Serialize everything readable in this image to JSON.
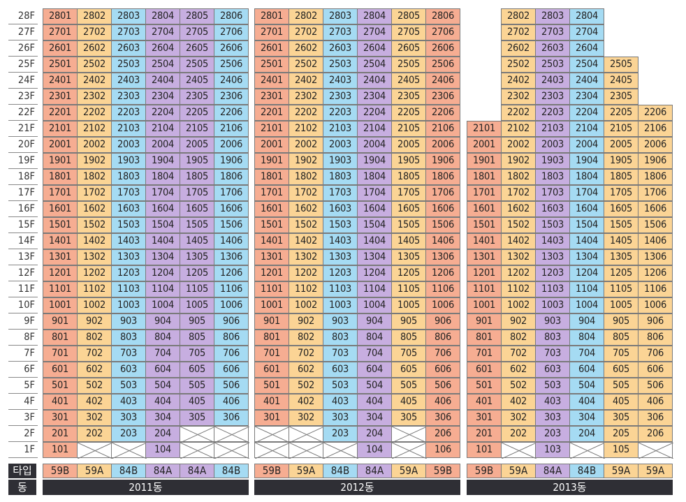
{
  "floors": [
    "28F",
    "27F",
    "26F",
    "25F",
    "24F",
    "23F",
    "22F",
    "21F",
    "20F",
    "19F",
    "18F",
    "17F",
    "16F",
    "15F",
    "14F",
    "13F",
    "12F",
    "11F",
    "10F",
    "9F",
    "8F",
    "7F",
    "6F",
    "5F",
    "4F",
    "3F",
    "2F",
    "1F"
  ],
  "labels": {
    "type": "타입",
    "building": "동"
  },
  "colors": {
    "59B": "#f6ad92",
    "59A": "#fbd495",
    "84B": "#a5dbf3",
    "84A": "#c7aee0",
    "bar": "#2f2f35"
  },
  "buildings": [
    {
      "name": "2011동",
      "types": [
        "59B",
        "59A",
        "84B",
        "84A",
        "84A",
        "84B"
      ],
      "floor_lines": [
        "2801 2802 2803 2804 2805 2806",
        "2701 2702 2703 2704 2705 2706",
        "2601 2602 2603 2604 2605 2606",
        "2501 2502 2503 2504 2505 2506",
        "2401 2402 2403 2404 2405 2406",
        "2301 2302 2303 2304 2305 2306",
        "2201 2202 2203 2204 2205 2206",
        "2101 2102 2103 2104 2105 2106",
        "2001 2002 2003 2004 2005 2006",
        "1901 1902 1903 1904 1905 1906",
        "1801 1802 1803 1804 1805 1806",
        "1701 1702 1703 1704 1705 1706",
        "1601 1602 1603 1604 1605 1606",
        "1501 1502 1503 1504 1505 1506",
        "1401 1402 1403 1404 1405 1406",
        "1301 1302 1303 1304 1305 1306",
        "1201 1202 1203 1204 1205 1206",
        "1101 1102 1103 1104 1105 1106",
        "1001 1002 1003 1004 1005 1006",
        "901 902 903 904 905 906",
        "801 802 803 804 805 806",
        "701 702 703 704 705 706",
        "601 602 603 604 605 606",
        "501 502 503 504 505 506",
        "401 402 403 404 405 406",
        "301 302 303 304 305 306",
        "201 202 203 204 X X",
        "101 X X 104 X X"
      ]
    },
    {
      "name": "2012동",
      "types": [
        "59B",
        "59A",
        "84B",
        "84A",
        "59A",
        "59B"
      ],
      "floor_lines": [
        "2801 2802 2803 2804 2805 2806",
        "2701 2702 2703 2704 2705 2706",
        "2601 2602 2603 2604 2605 2606",
        "2501 2502 2503 2504 2505 2506",
        "2401 2402 2403 2404 2405 2406",
        "2301 2302 2303 2304 2305 2306",
        "2201 2202 2203 2204 2205 2206",
        "2101 2102 2103 2104 2105 2106",
        "2001 2002 2003 2004 2005 2006",
        "1901 1902 1903 1904 1905 1906",
        "1801 1802 1803 1804 1805 1806",
        "1701 1702 1703 1704 1705 1706",
        "1601 1602 1603 1604 1605 1606",
        "1501 1502 1503 1504 1505 1506",
        "1401 1402 1403 1404 1405 1406",
        "1301 1302 1303 1304 1305 1306",
        "1201 1202 1203 1204 1205 1206",
        "1101 1102 1103 1104 1105 1106",
        "1001 1002 1003 1004 1005 1006",
        "901 902 903 904 905 906",
        "801 802 803 804 805 806",
        "701 702 703 704 705 706",
        "601 602 603 604 605 606",
        "501 502 503 504 505 506",
        "401 402 403 404 405 406",
        "301 302 303 304 305 306",
        "X X 203 204 X 206",
        "X X X 104 X 106"
      ]
    },
    {
      "name": "2013동",
      "types": [
        "59B",
        "59A",
        "84A",
        "84B",
        "59A",
        "59A"
      ],
      "floor_lines": [
        "- 2802 2803 2804 - -",
        "- 2702 2703 2704 - -",
        "- 2602 2603 2604 - -",
        "- 2502 2503 2504 2505 -",
        "- 2402 2403 2404 2405 -",
        "- 2302 2303 2304 2305 -",
        "- 2202 2203 2204 2205 2206",
        "2101 2102 2103 2104 2105 2106",
        "2001 2002 2003 2004 2005 2006",
        "1901 1902 1903 1904 1905 1906",
        "1801 1802 1803 1804 1805 1806",
        "1701 1702 1703 1704 1705 1706",
        "1601 1602 1603 1604 1605 1606",
        "1501 1502 1503 1504 1505 1506",
        "1401 1402 1403 1404 1405 1406",
        "1301 1302 1303 1304 1305 1306",
        "1201 1202 1203 1204 1205 1206",
        "1101 1102 1103 1104 1105 1106",
        "1001 1002 1003 1004 1005 1006",
        "901 902 903 904 905 906",
        "801 802 803 804 805 806",
        "701 702 703 704 705 706",
        "601 602 603 604 605 606",
        "501 502 503 504 505 506",
        "401 402 403 404 405 406",
        "301 302 303 304 305 306",
        "201 202 203 204 205 206",
        "101 X 103 X 105 X"
      ]
    }
  ]
}
